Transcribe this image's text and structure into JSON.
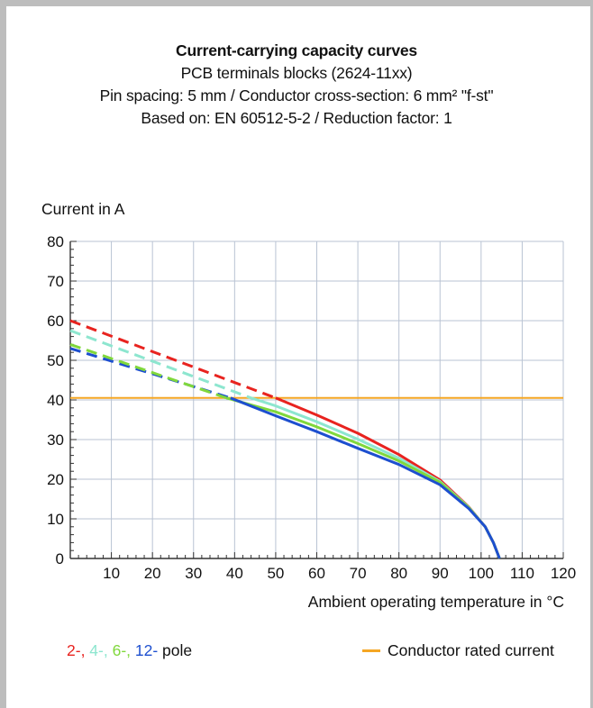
{
  "chart_data": {
    "type": "line",
    "title": "Current-carrying capacity curves",
    "subtitles": [
      "PCB terminals blocks (2624-11xx)",
      "Pin spacing: 5 mm / Conductor cross-section: 6 mm² \"f-st\"",
      "Based on: EN 60512-5-2 / Reduction factor: 1"
    ],
    "ylabel": "Current in A",
    "xlabel": "Ambient operating temperature in °C",
    "xlim": [
      0,
      120
    ],
    "ylim": [
      0,
      80
    ],
    "x_ticks": [
      10,
      20,
      30,
      40,
      50,
      60,
      70,
      80,
      90,
      100,
      110,
      120
    ],
    "y_ticks": [
      0,
      10,
      20,
      30,
      40,
      50,
      60,
      70,
      80
    ],
    "grid": true,
    "reference_line": {
      "name": "Conductor rated current",
      "y": 40.5,
      "color": "#f5a623"
    },
    "series": [
      {
        "name": "2-",
        "color": "#e8231f",
        "dashed": [
          [
            0,
            60
          ],
          [
            50,
            40.5
          ]
        ],
        "solid": [
          [
            50,
            40.5
          ],
          [
            60,
            36.2
          ],
          [
            70,
            31.6
          ],
          [
            80,
            26.2
          ],
          [
            90,
            19.8
          ],
          [
            97,
            13
          ],
          [
            101,
            8
          ],
          [
            103,
            4
          ],
          [
            104.5,
            0
          ]
        ]
      },
      {
        "name": "4-",
        "color": "#8de6cf",
        "dashed": [
          [
            0,
            57.5
          ],
          [
            44,
            40.5
          ]
        ],
        "solid": [
          [
            44,
            40.5
          ],
          [
            50,
            38.5
          ],
          [
            60,
            34.5
          ],
          [
            70,
            30.1
          ],
          [
            80,
            25.3
          ],
          [
            90,
            19.4
          ],
          [
            97,
            12.9
          ],
          [
            101,
            8
          ],
          [
            103,
            4
          ],
          [
            104.5,
            0
          ]
        ]
      },
      {
        "name": "6-",
        "color": "#80d83c",
        "dashed": [
          [
            0,
            54
          ],
          [
            38,
            40.5
          ]
        ],
        "solid": [
          [
            38,
            40.5
          ],
          [
            50,
            37
          ],
          [
            60,
            33.2
          ],
          [
            70,
            29
          ],
          [
            80,
            24.6
          ],
          [
            90,
            19.2
          ],
          [
            97,
            12.8
          ],
          [
            101,
            8
          ],
          [
            103,
            4
          ],
          [
            104.5,
            0
          ]
        ]
      },
      {
        "name": "12-",
        "color": "#1d4fcf",
        "dashed": [
          [
            0,
            53
          ],
          [
            39,
            40.5
          ]
        ],
        "solid": [
          [
            39,
            40.5
          ],
          [
            50,
            36
          ],
          [
            60,
            32
          ],
          [
            70,
            27.8
          ],
          [
            80,
            23.7
          ],
          [
            90,
            18.6
          ],
          [
            97,
            12.6
          ],
          [
            101,
            8
          ],
          [
            103,
            4
          ],
          [
            104.5,
            0
          ]
        ]
      }
    ],
    "legend": {
      "poles_labels": [
        "2-",
        "4-",
        "6-",
        "12-"
      ],
      "poles_suffix": " pole"
    }
  }
}
